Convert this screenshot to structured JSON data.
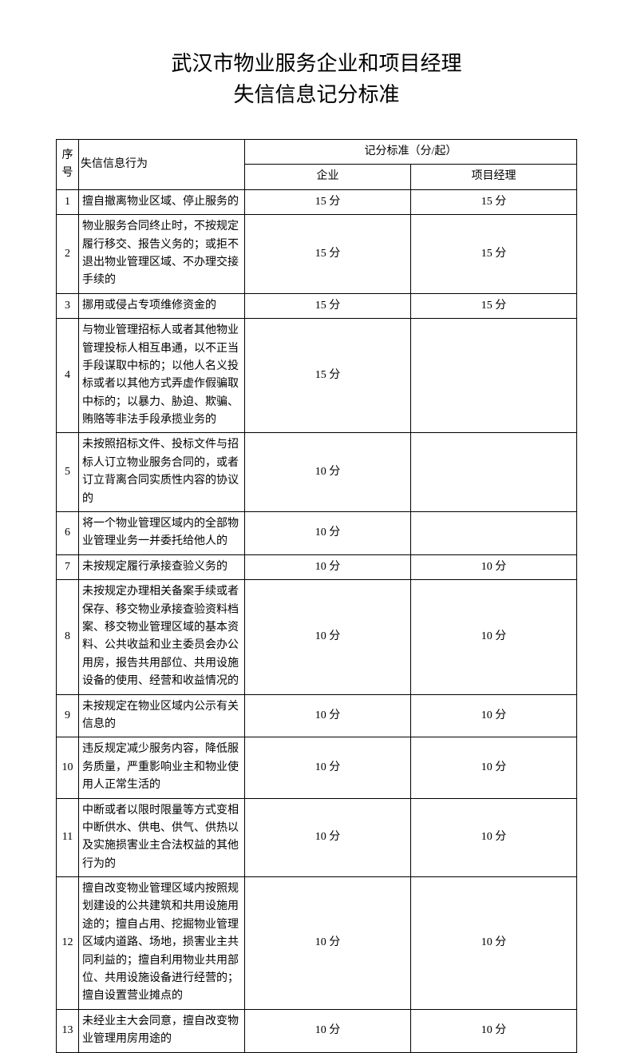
{
  "title": {
    "line1": "武汉市物业服务企业和项目经理",
    "line2": "失信信息记分标准"
  },
  "table": {
    "headers": {
      "seq": "序号",
      "behavior": "失信信息行为",
      "score_group": "记分标准（分/起）",
      "enterprise": "企业",
      "manager": "项目经理"
    },
    "rows": [
      {
        "seq": "1",
        "behavior": "擅自撤离物业区域、停止服务的",
        "enterprise": "15 分",
        "manager": "15 分"
      },
      {
        "seq": "2",
        "behavior": "物业服务合同终止时，不按规定履行移交、报告义务的；或拒不退出物业管理区域、不办理交接手续的",
        "enterprise": "15 分",
        "manager": "15 分"
      },
      {
        "seq": "3",
        "behavior": "挪用或侵占专项维修资金的",
        "enterprise": "15 分",
        "manager": "15 分"
      },
      {
        "seq": "4",
        "behavior": "与物业管理招标人或者其他物业管理投标人相互串通，以不正当手段谋取中标的；以他人名义投标或者以其他方式弄虚作假骗取中标的；以暴力、胁迫、欺骗、贿赂等非法手段承揽业务的",
        "enterprise": "15 分",
        "manager": ""
      },
      {
        "seq": "5",
        "behavior": "未按照招标文件、投标文件与招标人订立物业服务合同的，或者订立背离合同实质性内容的协议的",
        "enterprise": "10 分",
        "manager": ""
      },
      {
        "seq": "6",
        "behavior": "将一个物业管理区域内的全部物业管理业务一并委托给他人的",
        "enterprise": "10 分",
        "manager": ""
      },
      {
        "seq": "7",
        "behavior": "未按规定履行承接查验义务的",
        "enterprise": "10 分",
        "manager": "10 分"
      },
      {
        "seq": "8",
        "behavior": "未按规定办理相关备案手续或者保存、移交物业承接查验资料档案、移交物业管理区域的基本资料、公共收益和业主委员会办公用房，报告共用部位、共用设施设备的使用、经营和收益情况的",
        "enterprise": "10 分",
        "manager": "10 分"
      },
      {
        "seq": "9",
        "behavior": "未按规定在物业区域内公示有关信息的",
        "enterprise": "10 分",
        "manager": "10 分"
      },
      {
        "seq": "10",
        "behavior": "违反规定减少服务内容，降低服务质量，严重影响业主和物业使用人正常生活的",
        "enterprise": "10 分",
        "manager": "10 分"
      },
      {
        "seq": "11",
        "behavior": "中断或者以限时限量等方式变相中断供水、供电、供气、供热以及实施损害业主合法权益的其他行为的",
        "enterprise": "10 分",
        "manager": "10 分"
      },
      {
        "seq": "12",
        "behavior": "擅自改变物业管理区域内按照规划建设的公共建筑和共用设施用途的；擅自占用、挖掘物业管理区域内道路、场地，损害业主共同利益的；擅自利用物业共用部位、共用设施设备进行经营的；擅自设置营业摊点的",
        "enterprise": "10 分",
        "manager": "10 分"
      },
      {
        "seq": "13",
        "behavior": "未经业主大会同意，擅自改变物业管理用房用途的",
        "enterprise": "10 分",
        "manager": "10 分"
      }
    ]
  }
}
